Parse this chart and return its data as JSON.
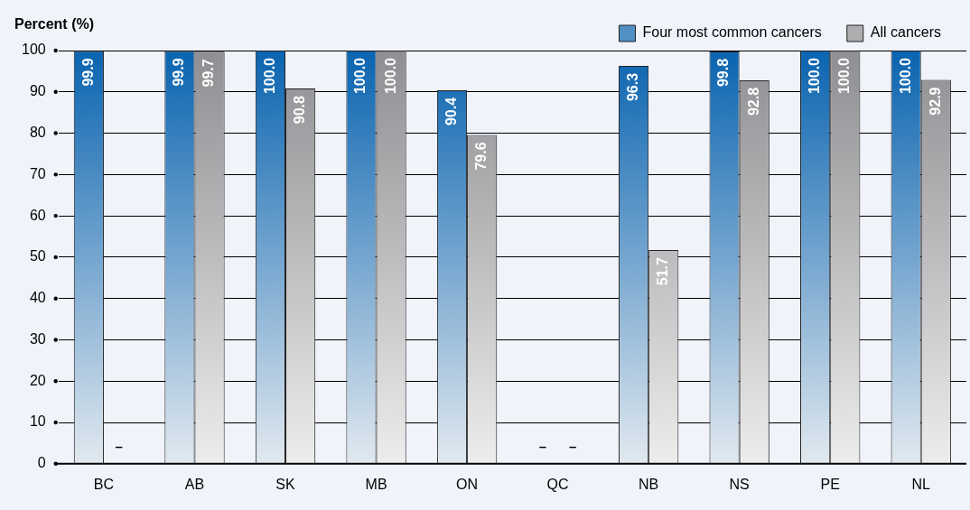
{
  "chart_data": {
    "type": "bar",
    "ylabel": "Percent (%)",
    "categories": [
      "BC",
      "AB",
      "SK",
      "MB",
      "ON",
      "QC",
      "NB",
      "NS",
      "PE",
      "NL"
    ],
    "series": [
      {
        "name": "Four most common cancers",
        "color": "#0a64b0",
        "values": [
          99.9,
          99.9,
          100.0,
          100.0,
          90.4,
          null,
          96.3,
          99.8,
          100.0,
          100.0
        ],
        "value_labels": [
          "99.9",
          "99.9",
          "100.0",
          "100.0",
          "90.4",
          "–",
          "96.3",
          "99.8",
          "100.0",
          "100.0"
        ]
      },
      {
        "name": "All cancers",
        "color": "#8f8f93",
        "values": [
          null,
          99.7,
          90.8,
          100.0,
          79.6,
          null,
          51.7,
          92.8,
          100.0,
          92.9
        ],
        "value_labels": [
          "–",
          "99.7",
          "90.8",
          "100.0",
          "79.6",
          "–",
          "51.7",
          "92.8",
          "100.0",
          "92.9"
        ]
      }
    ],
    "ylim": [
      0,
      100
    ],
    "yticks": [
      0,
      10,
      20,
      30,
      40,
      50,
      60,
      70,
      80,
      90,
      100
    ],
    "grid": "y",
    "legend": "top right"
  }
}
